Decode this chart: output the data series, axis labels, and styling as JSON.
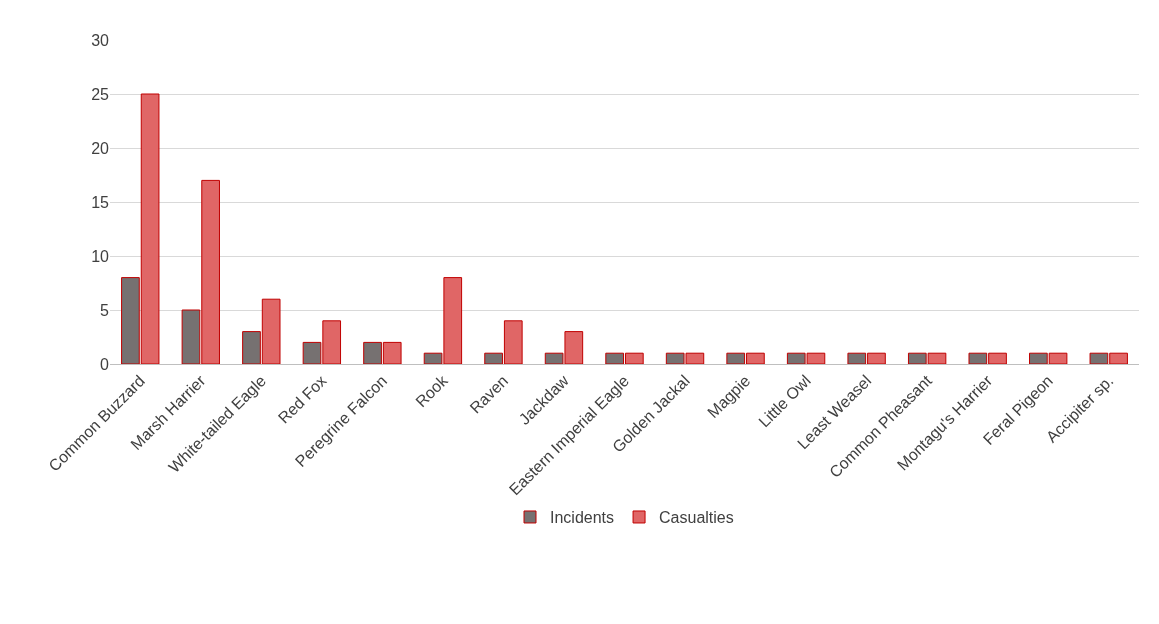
{
  "chart_data": {
    "type": "bar",
    "categories": [
      "Common Buzzard",
      "Marsh Harrier",
      "White-tailed Eagle",
      "Red Fox",
      "Peregrine Falcon",
      "Rook",
      "Raven",
      "Jackdaw",
      "Eastern Imperial Eagle",
      "Golden Jackal",
      "Magpie",
      "Little Owl",
      "Least Weasel",
      "Common Pheasant",
      "Montagu's Harrier",
      "Feral Pigeon",
      "Accipiter sp."
    ],
    "series": [
      {
        "name": "Incidents",
        "color": "#767171",
        "values": [
          8,
          5,
          3,
          2,
          2,
          1,
          1,
          1,
          1,
          1,
          1,
          1,
          1,
          1,
          1,
          1,
          1
        ]
      },
      {
        "name": "Casualties",
        "color": "#e06666",
        "values": [
          25,
          17,
          6,
          4,
          2,
          8,
          4,
          3,
          1,
          1,
          1,
          1,
          1,
          1,
          1,
          1,
          1
        ]
      }
    ],
    "ylim": [
      0,
      30
    ],
    "yticks": [
      0,
      5,
      10,
      15,
      20,
      25,
      30
    ],
    "grid": "y",
    "legend": "bottom"
  }
}
